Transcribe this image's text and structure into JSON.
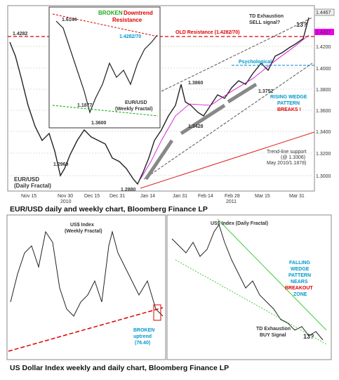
{
  "top": {
    "axis": [
      "1.4467",
      "1.4327",
      "1.4200",
      "1.4000",
      "1.3800",
      "1.3600",
      "1.3400",
      "1.3200",
      "1.3000"
    ],
    "dates": [
      "Nov 15",
      "Nov 30",
      "2010",
      "Dec 15",
      "Dec 31",
      "Jan 14",
      "Jan 31",
      "Feb 14",
      "Feb 28",
      "2011",
      "Mar 15",
      "Mar 31"
    ],
    "levels": {
      "old_high": "1.4282",
      "inset_high": "1.6144",
      "inset_res": "1.4282/70",
      "inset_low": "1.1877",
      "l1": "1.3860",
      "l2": "1.3752",
      "l3": "1.3428",
      "l4": "1.3600",
      "l5": "1.2969",
      "l6": "1.2880"
    },
    "broken": [
      "BROKEN",
      "Downtrend",
      "Resistance"
    ],
    "old_res": "OLD Resistance (1.4282/70)",
    "td": [
      "TD Exhaustion",
      "SELL signal?"
    ],
    "td_count": "13?",
    "psych": "Psychological",
    "wedge": [
      "RISING WEDGE",
      "PATTERN",
      "BREAKS !"
    ],
    "inset_label": [
      "EUR/USD",
      "(Weekly Fractal)"
    ],
    "main_label": [
      "EUR/USD",
      "(Daily Fractal)"
    ],
    "trend": [
      "Trend-line support",
      "(@ 1.3306)",
      "May 2010/1.1878)"
    ]
  },
  "caption1": "EUR/USD daily and weekly chart, Bloomberg Finance LP",
  "left": {
    "label": [
      "US$ Index",
      "(Weekly Fractal)"
    ],
    "broken": [
      "BROKEN",
      "uptrend",
      "(76.40)"
    ]
  },
  "right": {
    "label": "US$ Index (Daily Fractal)",
    "wedge": [
      "FALLING",
      "WEDGE",
      "PATTERN",
      "NEARS",
      "BREAKOUT",
      "ZONE"
    ],
    "td": [
      "TD Exhaustion",
      "BUY Signal"
    ],
    "td_count": "13?"
  },
  "caption2": "US Dollar Index weekly and daily chart, Bloomberg Finance LP"
}
